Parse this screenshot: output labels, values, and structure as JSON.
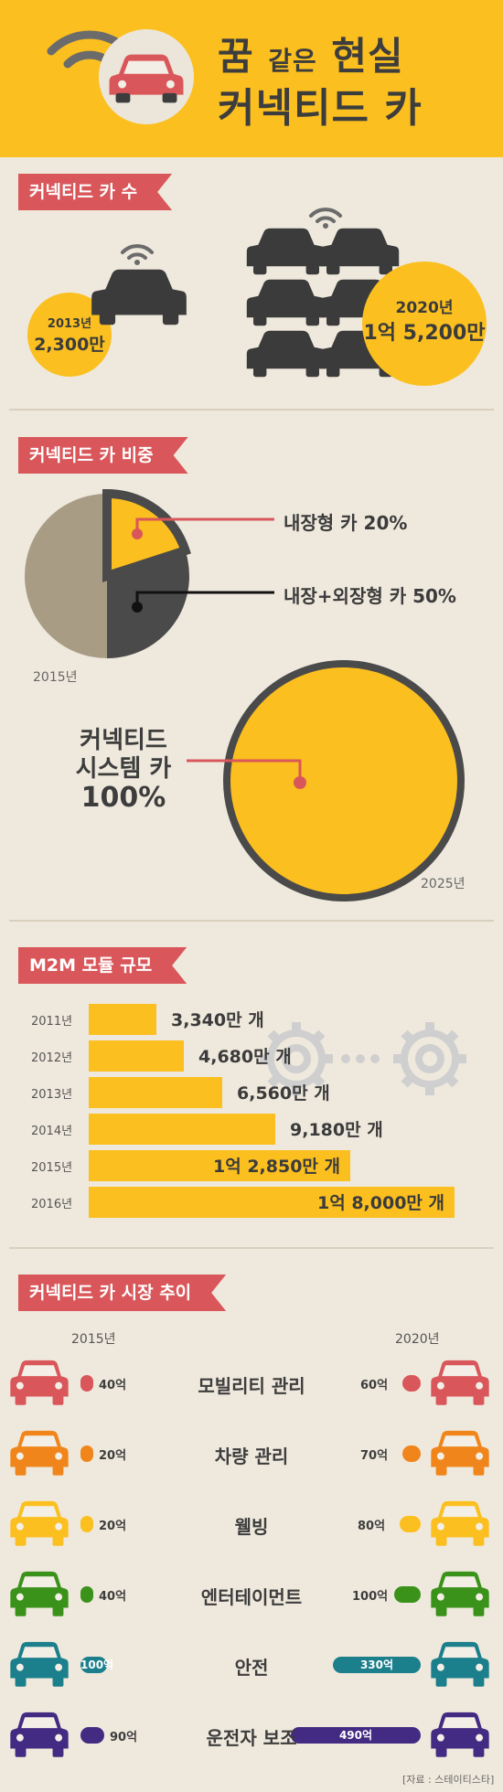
{
  "header": {
    "title_line1_a": "꿈",
    "title_line1_b": "같은",
    "title_line1_c": "현실",
    "title_line2": "커넥티드 카"
  },
  "section_count": {
    "ribbon": "커넥티드 카 수",
    "y2013_year": "2013년",
    "y2013_value": "2,300만",
    "y2020_year": "2020년",
    "y2020_value": "1억 5,200만"
  },
  "section_share": {
    "ribbon": "커넥티드 카 비중",
    "pie_2015_year": "2015년",
    "label_embedded": "내장형 카 20%",
    "label_hybrid": "내장+외장형 카 50%",
    "big_label_line1": "커넥티드",
    "big_label_line2": "시스템 카",
    "big_label_line3": "100%",
    "pie_2025_year": "2025년"
  },
  "section_m2m": {
    "ribbon": "M2M 모듈 규모",
    "rows": [
      {
        "year": "2011년",
        "label": "3,340만 개"
      },
      {
        "year": "2012년",
        "label": "4,680만 개"
      },
      {
        "year": "2013년",
        "label": "6,560만 개"
      },
      {
        "year": "2014년",
        "label": "9,180만 개"
      },
      {
        "year": "2015년",
        "label": "1억 2,850만 개"
      },
      {
        "year": "2016년",
        "label": "1억 8,000만 개"
      }
    ]
  },
  "section_market": {
    "ribbon": "커넥티드 카 시장 추이",
    "col_left": "2015년",
    "col_right": "2020년",
    "rows": [
      {
        "name": "모빌리티 관리",
        "v2015": "40억",
        "v2020": "60억",
        "color": "#d9575a"
      },
      {
        "name": "차량 관리",
        "v2015": "20억",
        "v2020": "70억",
        "color": "#f0861b"
      },
      {
        "name": "웰빙",
        "v2015": "20억",
        "v2020": "80억",
        "color": "#fbbf1f"
      },
      {
        "name": "엔터테이먼트",
        "v2015": "40억",
        "v2020": "100억",
        "color": "#3b921b"
      },
      {
        "name": "안전",
        "v2015": "100억",
        "v2020": "330억",
        "color": "#1b7f8c"
      },
      {
        "name": "운전자 보조",
        "v2015": "90억",
        "v2020": "490억",
        "color": "#432a82"
      }
    ]
  },
  "chart_data": [
    {
      "type": "bar",
      "title": "M2M 모듈 규모",
      "categories": [
        "2011년",
        "2012년",
        "2013년",
        "2014년",
        "2015년",
        "2016년"
      ],
      "values": [
        3340,
        4680,
        6560,
        9180,
        12850,
        18000
      ]
    },
    {
      "type": "pie",
      "categories": [
        "내장형 카",
        "내장+외장형 카"
      ],
      "values": [
        20,
        50
      ]
    },
    {
      "type": "bar",
      "title": "커넥티드 카 시장 추이",
      "categories": [
        "모빌리티 관리",
        "차량 관리",
        "웰빙",
        "엔터테이먼트",
        "안전",
        "운전자 보조"
      ],
      "series": [
        {
          "name": "2015년",
          "values": [
            40,
            20,
            20,
            40,
            100,
            90
          ]
        },
        {
          "name": "2020년",
          "values": [
            60,
            70,
            80,
            100,
            330,
            490
          ]
        }
      ]
    }
  ],
  "footer": {
    "source": "[자료 : 스테이티스타]"
  },
  "icons": {
    "wifi": "wifi-icon",
    "car": "car-icon",
    "gear": "gear-icon"
  },
  "colors": {
    "yellow": "#fbbf1f",
    "red": "#d9575a",
    "dark": "#3b3b3b",
    "beige": "#a89d84"
  }
}
